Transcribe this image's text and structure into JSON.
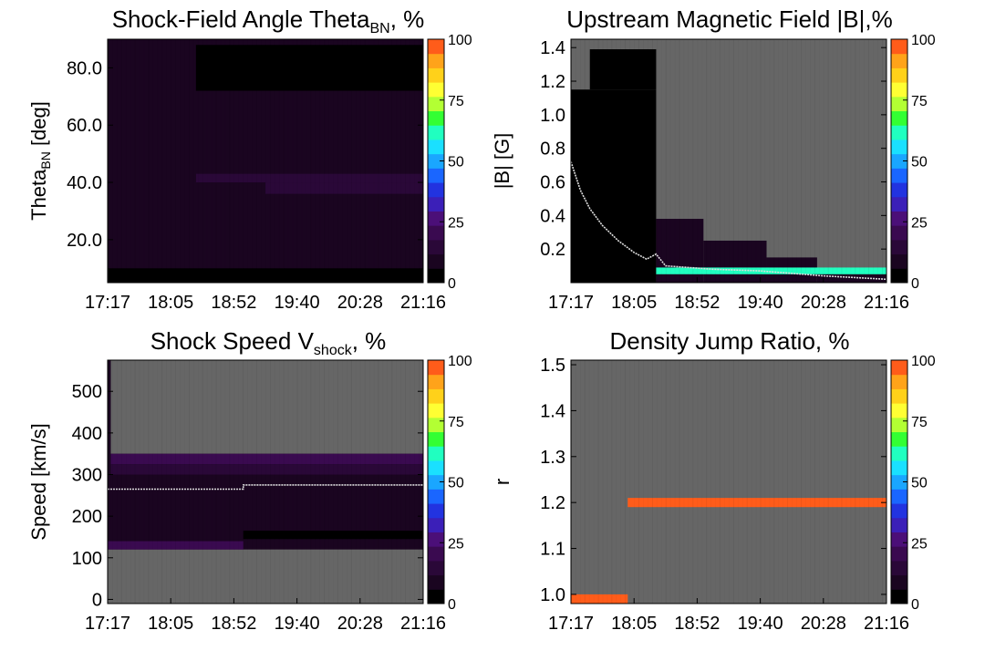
{
  "colors": {
    "background": "#ffffff",
    "nodata": "#666666",
    "colormap": [
      "#000000",
      "#1a0520",
      "#2a0838",
      "#3a0a50",
      "#4b0f78",
      "#3b1fb8",
      "#2233e0",
      "#1a66ff",
      "#1aa6ff",
      "#1ae0ff",
      "#20ffc0",
      "#33ff33",
      "#b3ff33",
      "#ffff33",
      "#ffd11a",
      "#ffa31a",
      "#ff5c1a"
    ],
    "trace": "#dddddd"
  },
  "colorbar": {
    "ticks": [
      "0",
      "25",
      "50",
      "75",
      "100"
    ],
    "values": [
      0,
      25,
      50,
      75,
      100
    ]
  },
  "time_axis": {
    "ticks": [
      "17:17",
      "18:05",
      "18:52",
      "19:40",
      "20:28",
      "21:16"
    ]
  },
  "chart_data": [
    {
      "id": "theta",
      "type": "heatmap",
      "title": "Shock-Field Angle Theta",
      "title_sub": "BN",
      "title_suffix": ", %",
      "ylabel": "Theta",
      "ylabel_sub": "BN",
      "ylabel_suffix": " [deg]",
      "ylim": [
        5,
        90
      ],
      "yticks": [
        20.0,
        40.0,
        60.0,
        80.0
      ],
      "ytick_labels": [
        "20.0",
        "40.0",
        "60.0",
        "80.0"
      ],
      "x_ticks": [
        "17:17",
        "18:05",
        "18:52",
        "19:40",
        "20:28",
        "21:16"
      ],
      "bands": [
        {
          "from_t": 0.0,
          "to_t": 1.0,
          "y0": 5,
          "y1": 90,
          "pct": 6
        },
        {
          "from_t": 0.28,
          "to_t": 1.0,
          "y0": 72,
          "y1": 88,
          "pct": 2
        },
        {
          "from_t": 0.28,
          "to_t": 1.0,
          "y0": 40,
          "y1": 43,
          "pct": 14
        },
        {
          "from_t": 0.5,
          "to_t": 1.0,
          "y0": 36,
          "y1": 40,
          "pct": 12
        },
        {
          "from_t": 0.0,
          "to_t": 1.0,
          "y0": 5,
          "y1": 10,
          "pct": 3
        }
      ],
      "trace": []
    },
    {
      "id": "bfield",
      "type": "heatmap",
      "title": "Upstream Magnetic Field |B|,%",
      "ylabel": "|B| [G]",
      "ylim": [
        0.0,
        1.45
      ],
      "yticks": [
        0.2,
        0.4,
        0.6,
        0.8,
        1.0,
        1.2,
        1.4
      ],
      "ytick_labels": [
        "0.2",
        "0.4",
        "0.6",
        "0.8",
        "1.0",
        "1.2",
        "1.4"
      ],
      "x_ticks": [
        "17:17",
        "18:05",
        "18:52",
        "19:40",
        "20:28",
        "21:16"
      ],
      "bands": [
        {
          "from_t": 0.0,
          "to_t": 0.27,
          "y0": 0.0,
          "y1": 1.15,
          "pct": 3
        },
        {
          "from_t": 0.06,
          "to_t": 0.27,
          "y0": 1.15,
          "y1": 1.39,
          "pct": 1
        },
        {
          "from_t": 0.27,
          "to_t": 0.42,
          "y0": 0.0,
          "y1": 0.38,
          "pct": 5
        },
        {
          "from_t": 0.42,
          "to_t": 0.62,
          "y0": 0.0,
          "y1": 0.25,
          "pct": 5
        },
        {
          "from_t": 0.62,
          "to_t": 0.78,
          "y0": 0.0,
          "y1": 0.15,
          "pct": 5
        },
        {
          "from_t": 0.78,
          "to_t": 1.0,
          "y0": 0.0,
          "y1": 0.06,
          "pct": 5
        },
        {
          "from_t": 0.27,
          "to_t": 1.0,
          "y0": 0.05,
          "y1": 0.09,
          "pct": 60
        }
      ],
      "trace": [
        {
          "t": 0.0,
          "v": 0.72
        },
        {
          "t": 0.03,
          "v": 0.55
        },
        {
          "t": 0.06,
          "v": 0.44
        },
        {
          "t": 0.1,
          "v": 0.34
        },
        {
          "t": 0.15,
          "v": 0.25
        },
        {
          "t": 0.2,
          "v": 0.18
        },
        {
          "t": 0.24,
          "v": 0.14
        },
        {
          "t": 0.27,
          "v": 0.17
        },
        {
          "t": 0.3,
          "v": 0.1
        },
        {
          "t": 0.45,
          "v": 0.08
        },
        {
          "t": 0.6,
          "v": 0.07
        },
        {
          "t": 0.8,
          "v": 0.04
        },
        {
          "t": 1.0,
          "v": 0.02
        }
      ]
    },
    {
      "id": "speed",
      "type": "heatmap",
      "title": "Shock Speed V",
      "title_sub": "shock",
      "title_suffix": ", %",
      "ylabel": "Speed [km/s]",
      "ylim": [
        -10,
        575
      ],
      "yticks": [
        0,
        100,
        200,
        300,
        400,
        500
      ],
      "ytick_labels": [
        "0",
        "100",
        "200",
        "300",
        "400",
        "500"
      ],
      "x_ticks": [
        "17:17",
        "18:05",
        "18:52",
        "19:40",
        "20:28",
        "21:16"
      ],
      "bands": [
        {
          "from_t": 0.0,
          "to_t": 1.0,
          "y0": 120,
          "y1": 350,
          "pct": 6
        },
        {
          "from_t": 0.0,
          "to_t": 0.43,
          "y0": 120,
          "y1": 140,
          "pct": 18
        },
        {
          "from_t": 0.0,
          "to_t": 1.0,
          "y0": 325,
          "y1": 350,
          "pct": 18
        },
        {
          "from_t": 0.0,
          "to_t": 1.0,
          "y0": 300,
          "y1": 325,
          "pct": 10
        },
        {
          "from_t": 0.43,
          "to_t": 1.0,
          "y0": 145,
          "y1": 165,
          "pct": 3
        },
        {
          "from_t": 0.0,
          "to_t": 0.01,
          "y0": 170,
          "y1": 575,
          "pct": 6
        }
      ],
      "trace": [
        {
          "t": 0.0,
          "v": 265
        },
        {
          "t": 0.43,
          "v": 265
        },
        {
          "t": 0.43,
          "v": 275
        },
        {
          "t": 1.0,
          "v": 275
        }
      ]
    },
    {
      "id": "density",
      "type": "heatmap",
      "title": "Density Jump Ratio, %",
      "ylabel": "r",
      "ylim": [
        0.98,
        1.51
      ],
      "yticks": [
        1.0,
        1.1,
        1.2,
        1.3,
        1.4,
        1.5
      ],
      "ytick_labels": [
        "1.0",
        "1.1",
        "1.2",
        "1.3",
        "1.4",
        "1.5"
      ],
      "x_ticks": [
        "17:17",
        "18:05",
        "18:52",
        "19:40",
        "20:28",
        "21:16"
      ],
      "bands": [
        {
          "from_t": 0.0,
          "to_t": 0.18,
          "y0": 0.98,
          "y1": 1.0,
          "pct": 100
        },
        {
          "from_t": 0.18,
          "to_t": 1.0,
          "y0": 1.19,
          "y1": 1.21,
          "pct": 100
        }
      ],
      "trace": []
    }
  ]
}
